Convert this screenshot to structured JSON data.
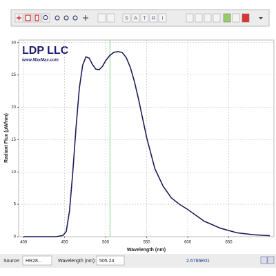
{
  "toolbar": {
    "letters": [
      "S",
      "A",
      "T",
      "R",
      "I"
    ]
  },
  "chart_data": {
    "type": "line",
    "title": "LDP LLC",
    "subtitle": "www.MaxMax.com",
    "x_label": "Wavelength (nm)",
    "y_label": "Radiant Flux (µW/nm)",
    "x": [
      400,
      440,
      448,
      452,
      456,
      460,
      464,
      468,
      472,
      476,
      480,
      484,
      488,
      492,
      496,
      500,
      505,
      510,
      515,
      520,
      525,
      530,
      535,
      540,
      545,
      550,
      560,
      570,
      580,
      590,
      600,
      620,
      640,
      660,
      680,
      700
    ],
    "series": [
      {
        "name": "HR28...",
        "color": "#1c1c5a",
        "values": [
          0,
          0,
          0.2,
          0.8,
          4,
          10,
          17,
          23,
          26.5,
          27.8,
          27.6,
          26.6,
          25.9,
          25.8,
          26.3,
          27.2,
          28,
          28.5,
          28.6,
          28.5,
          27.7,
          26.2,
          24,
          21.3,
          18.3,
          15.3,
          10.5,
          7.8,
          6,
          5,
          4.2,
          2.4,
          1.3,
          0.6,
          0.3,
          0.15
        ]
      }
    ],
    "xlim": [
      394,
      705
    ],
    "ylim": [
      0,
      30.4
    ],
    "xticks": [
      400,
      450,
      500,
      550,
      600,
      650
    ],
    "yticks": [
      0,
      5,
      10,
      15,
      20,
      25,
      30
    ],
    "grid": true,
    "cursor_x": 505.24,
    "cursor_color": "#7fd17f"
  },
  "status_bar": {
    "source_label": "Source:",
    "wavelength_label": "Wavelength (nm):",
    "readout": "2.6766E01"
  }
}
